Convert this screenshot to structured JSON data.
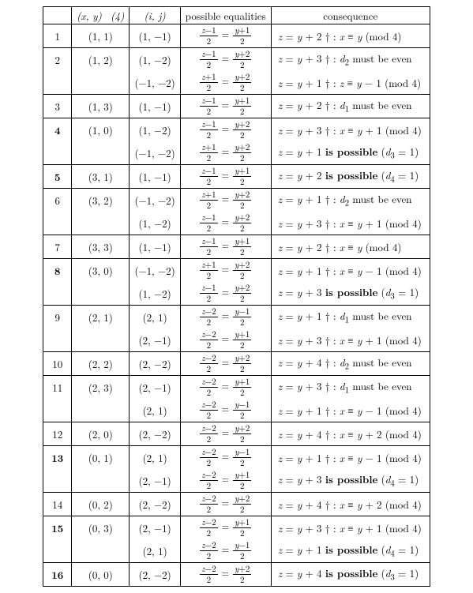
{
  "headers": {
    "idx": "",
    "xy": "(x, y)  (4)",
    "ij": "(i, j)",
    "eq": "possible equalities",
    "cons": "consequence"
  },
  "style": {
    "font_family": "Computer Modern / Times serif",
    "font_size_pt": 10,
    "frac_font_size_pt": 8.5,
    "border_color": "#000000",
    "background_color": "#ffffff",
    "text_color": "#000000"
  },
  "rows": [
    {
      "n": "1",
      "bold": false,
      "xy": "(1, 1)",
      "sub": [
        {
          "ij": "(1, −1)",
          "eq": {
            "ln": "z−1",
            "ld": "2",
            "rn": "y+1",
            "rd": "2"
          },
          "cons": "z = y + 2 † : x ≡ y  (mod 4)"
        }
      ]
    },
    {
      "n": "2",
      "bold": false,
      "xy": "(1, 2)",
      "sub": [
        {
          "ij": "(1, −2)",
          "eq": {
            "ln": "z−1",
            "ld": "2",
            "rn": "y+2",
            "rd": "2"
          },
          "cons": "z = y + 3 † : d₂ must be even"
        },
        {
          "ij": "(−1, −2)",
          "eq": {
            "ln": "z+1",
            "ld": "2",
            "rn": "y+2",
            "rd": "2"
          },
          "cons": "z = y + 1 † : z ≡ y − 1  (mod 4)"
        }
      ]
    },
    {
      "n": "3",
      "bold": false,
      "xy": "(1, 3)",
      "sub": [
        {
          "ij": "(1, −1)",
          "eq": {
            "ln": "z−1",
            "ld": "2",
            "rn": "y+1",
            "rd": "2"
          },
          "cons": "z = y + 2 † : d₁ must be even"
        }
      ]
    },
    {
      "n": "4",
      "bold": true,
      "xy": "(1, 0)",
      "sub": [
        {
          "ij": "(1, −2)",
          "eq": {
            "ln": "z−1",
            "ld": "2",
            "rn": "y+2",
            "rd": "2"
          },
          "cons": "z = y + 3 † : x ≡ y + 1  (mod 4)"
        },
        {
          "ij": "(−1, −2)",
          "eq": {
            "ln": "z+1",
            "ld": "2",
            "rn": "y+2",
            "rd": "2"
          },
          "cons_html": "z = y + 1 <span class='b'>is possible</span> (d₃ = 1)"
        }
      ]
    },
    {
      "n": "5",
      "bold": true,
      "xy": "(3, 1)",
      "sub": [
        {
          "ij": "(1, −1)",
          "eq": {
            "ln": "z−1",
            "ld": "2",
            "rn": "y+1",
            "rd": "2"
          },
          "cons_html": "z = y + 2 <span class='b'>is possible</span> (d₄ = 1)"
        }
      ]
    },
    {
      "n": "6",
      "bold": false,
      "xy": "(3, 2)",
      "sub": [
        {
          "ij": "(−1, −2)",
          "eq": {
            "ln": "z+1",
            "ld": "2",
            "rn": "y+2",
            "rd": "2"
          },
          "cons": "z = y + 1 † : d₂ must be even"
        },
        {
          "ij": "(1, −2)",
          "eq": {
            "ln": "z−1",
            "ld": "2",
            "rn": "y+2",
            "rd": "2"
          },
          "cons": "z = y + 3 † : x ≡ y + 1  (mod 4)"
        }
      ]
    },
    {
      "n": "7",
      "bold": false,
      "xy": "(3, 3)",
      "sub": [
        {
          "ij": "(1, −1)",
          "eq": {
            "ln": "z−1",
            "ld": "2",
            "rn": "y+1",
            "rd": "2"
          },
          "cons": "z = y + 2 † : x ≡ y  (mod 4)"
        }
      ]
    },
    {
      "n": "8",
      "bold": true,
      "xy": "(3, 0)",
      "sub": [
        {
          "ij": "(−1, −2)",
          "eq": {
            "ln": "z+1",
            "ld": "2",
            "rn": "y+2",
            "rd": "2"
          },
          "cons": "z = y + 1 † : x ≡ y − 1  (mod 4)"
        },
        {
          "ij": "(1, −2)",
          "eq": {
            "ln": "z−1",
            "ld": "2",
            "rn": "y+2",
            "rd": "2"
          },
          "cons_html": "z = y + 3 <span class='b'>is possible</span> (d₃ = 1)"
        }
      ]
    },
    {
      "n": "9",
      "bold": false,
      "xy": "(2, 1)",
      "sub": [
        {
          "ij": "(2, 1)",
          "eq": {
            "ln": "z−2",
            "ld": "2",
            "rn": "y−1",
            "rd": "2"
          },
          "cons": "z = y + 1 † : d₁ must be even"
        },
        {
          "ij": "(2, −1)",
          "eq": {
            "ln": "z−2",
            "ld": "2",
            "rn": "y+1",
            "rd": "2"
          },
          "cons": "z = y + 3 † : x ≡ y + 1  (mod 4)"
        }
      ]
    },
    {
      "n": "10",
      "bold": false,
      "xy": "(2, 2)",
      "sub": [
        {
          "ij": "(2, −2)",
          "eq": {
            "ln": "z−2",
            "ld": "2",
            "rn": "y+2",
            "rd": "2"
          },
          "cons": "z = y + 4 † : d₂ must be even"
        }
      ]
    },
    {
      "n": "11",
      "bold": false,
      "xy": "(2, 3)",
      "sub": [
        {
          "ij": "(2, −1)",
          "eq": {
            "ln": "z−2",
            "ld": "2",
            "rn": "y+1",
            "rd": "2"
          },
          "cons": "z = y + 3 † : d₁ must be even"
        },
        {
          "ij": "(2, 1)",
          "eq": {
            "ln": "z−2",
            "ld": "2",
            "rn": "y−1",
            "rd": "2"
          },
          "cons": "z = y + 1 † : x ≡ y − 1  (mod 4)"
        }
      ]
    },
    {
      "n": "12",
      "bold": false,
      "xy": "(2, 0)",
      "sub": [
        {
          "ij": "(2, −2)",
          "eq": {
            "ln": "z−2",
            "ld": "2",
            "rn": "y+2",
            "rd": "2"
          },
          "cons": "z = y + 4 † : x ≡ y + 2  (mod 4)"
        }
      ]
    },
    {
      "n": "13",
      "bold": true,
      "xy": "(0, 1)",
      "sub": [
        {
          "ij": "(2, 1)",
          "eq": {
            "ln": "z−2",
            "ld": "2",
            "rn": "y−1",
            "rd": "2"
          },
          "cons": "z = y + 1 † : x ≡ y − 1  (mod 4)"
        },
        {
          "ij": "(2, −1)",
          "eq": {
            "ln": "z−2",
            "ld": "2",
            "rn": "y+1",
            "rd": "2"
          },
          "cons_html": "z = y + 3 <span class='b'>is possible</span> (d₄ = 1)"
        }
      ]
    },
    {
      "n": "14",
      "bold": false,
      "xy": "(0, 2)",
      "sub": [
        {
          "ij": "(2, −2)",
          "eq": {
            "ln": "z−2",
            "ld": "2",
            "rn": "y+2",
            "rd": "2"
          },
          "cons": "z = y + 4 † : x ≡ y + 2  (mod 4)"
        }
      ]
    },
    {
      "n": "15",
      "bold": true,
      "xy": "(0, 3)",
      "sub": [
        {
          "ij": "(2, −1)",
          "eq": {
            "ln": "z−2",
            "ld": "2",
            "rn": "y+1",
            "rd": "2"
          },
          "cons": "z = y + 3 † : x ≡ y + 1  (mod 4)"
        },
        {
          "ij": "(2, 1)",
          "eq": {
            "ln": "z−2",
            "ld": "2",
            "rn": "y−1",
            "rd": "2"
          },
          "cons_html": "z = y + 1 <span class='b'>is possible</span> (d₄ = 1)"
        }
      ]
    },
    {
      "n": "16",
      "bold": true,
      "xy": "(0, 0)",
      "sub": [
        {
          "ij": "(2, −2)",
          "eq": {
            "ln": "z−2",
            "ld": "2",
            "rn": "y+2",
            "rd": "2"
          },
          "cons_html": "z = y + 4 <span class='b'>is possible</span> (d₃ = 1)"
        }
      ]
    }
  ]
}
